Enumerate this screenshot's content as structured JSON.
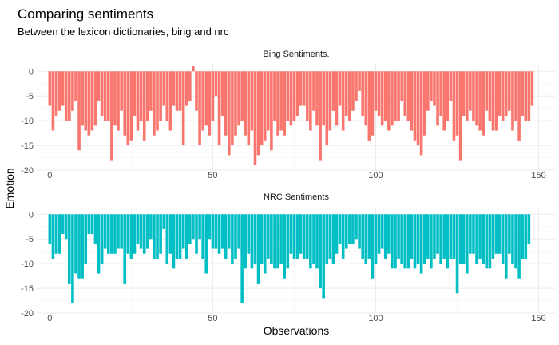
{
  "chart_data": {
    "type": "bar",
    "title": "Comparing sentiments",
    "subtitle": "Between the lexicon dictionaries, bing and nrc",
    "xlabel": "Observations",
    "ylabel": "Emotion",
    "xlim": [
      -4,
      155
    ],
    "xticks": [
      "0",
      "50",
      "100",
      "150"
    ],
    "yticks": [
      "0",
      "-5",
      "-10",
      "-15",
      "-20"
    ],
    "ylim": [
      -20,
      1.5
    ],
    "grid": true,
    "legend": "none",
    "panels": [
      {
        "strip": "Bing Sentiments.",
        "color": "#F8766D",
        "x_start": 0,
        "values": [
          -7,
          -12,
          -9,
          -8,
          -7,
          -10,
          -10,
          -8,
          -6,
          -16,
          -11,
          -12,
          -13,
          -12,
          -11,
          -6,
          -9,
          -10,
          -10,
          -18,
          -11,
          -12,
          -8,
          -13,
          -15,
          -14,
          -9,
          -12,
          -10,
          -14,
          -10,
          -8,
          -13,
          -12,
          -10,
          -7,
          -10,
          -12,
          -7,
          -8,
          -8,
          -15,
          -7,
          -6,
          1,
          -8,
          -15,
          -12,
          -11,
          -13,
          -10,
          -5,
          -15,
          -9,
          -13,
          -17,
          -15,
          -13,
          -11,
          -10,
          -13,
          -15,
          -12,
          -19,
          -17,
          -15,
          -14,
          -12,
          -16,
          -10,
          -13,
          -12,
          -13,
          -10,
          -11,
          -10,
          -9,
          -7,
          -7,
          -10,
          -12,
          -8,
          -11,
          -18,
          -11,
          -15,
          -12,
          -8,
          -11,
          -7,
          -12,
          -9,
          -10,
          -8,
          -6,
          -4,
          -9,
          -11,
          -14,
          -13,
          -8,
          -9,
          -11,
          -10,
          -12,
          -11,
          -10,
          -10,
          -6,
          -9,
          -10,
          -12,
          -14,
          -15,
          -17,
          -13,
          -8,
          -6,
          -7,
          -11,
          -9,
          -12,
          -10,
          -6,
          -14,
          -13,
          -18,
          -9,
          -10,
          -8,
          -10,
          -11,
          -12,
          -13,
          -8,
          -10,
          -12,
          -12,
          -9,
          -10,
          -9,
          -8,
          -12,
          -10,
          -14,
          -9,
          -10,
          -10,
          -7
        ]
      },
      {
        "strip": "NRC Sentiments",
        "color": "#00BFC4",
        "x_start": 0,
        "values": [
          -6,
          -9,
          -8,
          -8,
          -4,
          -5,
          -14,
          -18,
          -12,
          -13,
          -13,
          -10,
          -4,
          -4,
          -6,
          -12,
          -10,
          -7,
          -8,
          -8,
          -8,
          -7,
          -7,
          -14,
          -8,
          -9,
          -8,
          -6,
          -7,
          -8,
          -7,
          -5,
          -9,
          -9,
          -8,
          -3,
          -10,
          -8,
          -11,
          -9,
          -9,
          -7,
          -9,
          -6,
          -5,
          -8,
          -5,
          -9,
          -12,
          -5,
          -7,
          -7,
          -8,
          -7,
          -9,
          -7,
          -10,
          -9,
          -7,
          -18,
          -11,
          -8,
          -11,
          -10,
          -14,
          -10,
          -12,
          -9,
          -10,
          -11,
          -11,
          -10,
          -13,
          -11,
          -8,
          -9,
          -9,
          -8,
          -9,
          -9,
          -11,
          -10,
          -11,
          -15,
          -17,
          -10,
          -9,
          -10,
          -8,
          -6,
          -9,
          -7,
          -6,
          -6,
          -5,
          -7,
          -9,
          -10,
          -9,
          -13,
          -10,
          -8,
          -7,
          -9,
          -8,
          -11,
          -11,
          -9,
          -10,
          -11,
          -11,
          -9,
          -11,
          -10,
          -12,
          -10,
          -9,
          -11,
          -9,
          -8,
          -10,
          -9,
          -11,
          -9,
          -9,
          -16,
          -10,
          -10,
          -12,
          -8,
          -8,
          -10,
          -9,
          -10,
          -11,
          -11,
          -9,
          -8,
          -8,
          -10,
          -13,
          -8,
          -10,
          -11,
          -13,
          -9,
          -9,
          -6
        ]
      }
    ]
  }
}
